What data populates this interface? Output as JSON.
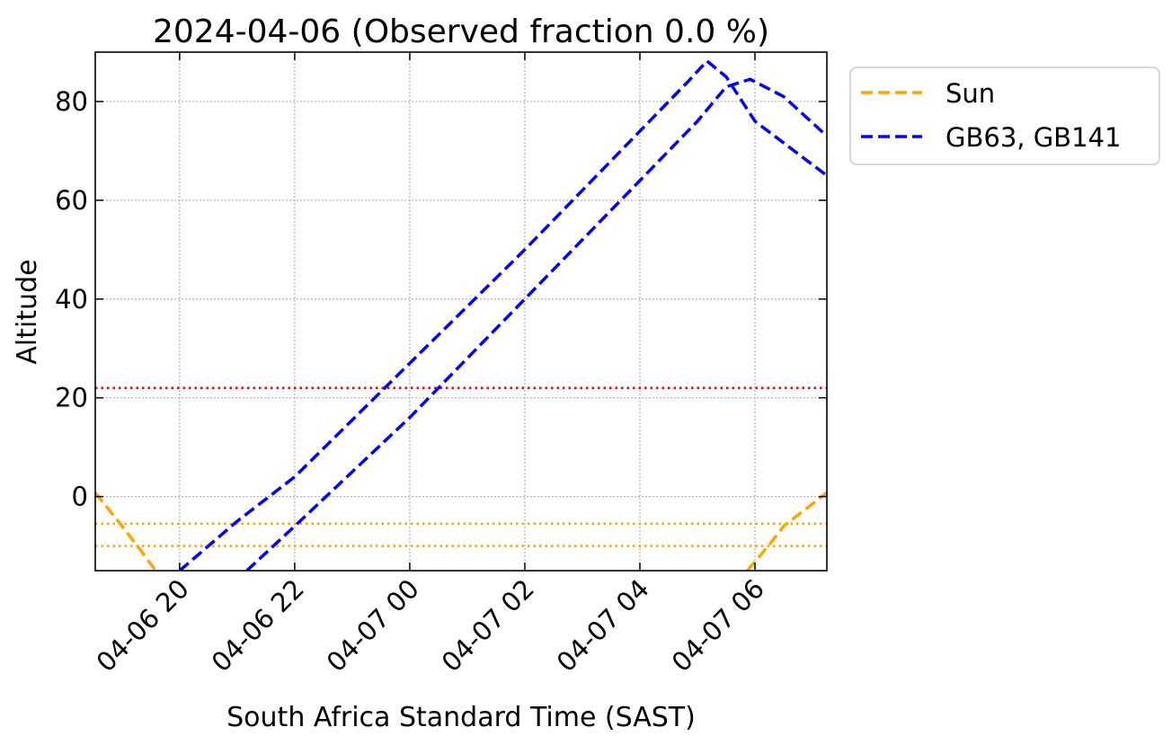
{
  "chart_data": {
    "type": "line",
    "title": "2024-04-06 (Observed fraction 0.0 %)",
    "xlabel": "South Africa Standard Time (SAST)",
    "ylabel": "Altitude",
    "x_ticks": [
      "04-06 20",
      "04-06 22",
      "04-07 00",
      "04-07 02",
      "04-07 04",
      "04-07 06"
    ],
    "y_ticks": [
      0,
      20,
      40,
      60,
      80
    ],
    "xlim": [
      "2024-04-06 18:32",
      "2024-04-07 07:15"
    ],
    "ylim": [
      -15,
      90
    ],
    "grid": true,
    "legend_position": "outside-top-right",
    "legend": [
      "Sun",
      "GB63, GB141"
    ],
    "series": [
      {
        "name": "Sun",
        "color": "#FFA500",
        "style": "dashed",
        "segments": [
          [
            [
              "2024-04-06 18:32",
              0.8
            ],
            [
              "2024-04-06 19:00",
              -6
            ],
            [
              "2024-04-06 19:16",
              -10
            ],
            [
              "2024-04-06 19:35",
              -15
            ]
          ],
          [
            [
              "2024-04-07 05:52",
              -15
            ],
            [
              "2024-04-07 06:14",
              -10
            ],
            [
              "2024-04-07 06:30",
              -6
            ],
            [
              "2024-04-07 07:15",
              0.8
            ]
          ]
        ]
      },
      {
        "name": "GB63, GB141",
        "color": "#0000FF",
        "style": "dashed",
        "segments": [
          [
            [
              "2024-04-06 20:00",
              -15
            ],
            [
              "2024-04-06 21:00",
              -5
            ],
            [
              "2024-04-06 22:00",
              4
            ],
            [
              "2024-04-07 00:00",
              27
            ],
            [
              "2024-04-07 02:00",
              50
            ],
            [
              "2024-04-07 04:00",
              74
            ],
            [
              "2024-04-07 04:50",
              84
            ],
            [
              "2024-04-07 05:10",
              88.2
            ],
            [
              "2024-04-07 05:30",
              85
            ],
            [
              "2024-04-07 06:00",
              76
            ],
            [
              "2024-04-07 07:15",
              65
            ]
          ],
          [
            [
              "2024-04-06 21:10",
              -15
            ],
            [
              "2024-04-06 22:00",
              -6
            ],
            [
              "2024-04-07 00:00",
              16
            ],
            [
              "2024-04-07 02:00",
              40
            ],
            [
              "2024-04-07 04:00",
              64
            ],
            [
              "2024-04-07 05:00",
              76
            ],
            [
              "2024-04-07 05:30",
              83
            ],
            [
              "2024-04-07 05:55",
              84.5
            ],
            [
              "2024-04-07 06:30",
              81
            ],
            [
              "2024-04-07 07:15",
              73
            ]
          ]
        ]
      }
    ],
    "reference_lines": [
      {
        "y": 22,
        "color": "#FF0000",
        "style": "dotted"
      },
      {
        "y": -5.5,
        "color": "#FFA500",
        "style": "dotted"
      },
      {
        "y": -10,
        "color": "#FFA500",
        "style": "dotted"
      }
    ]
  }
}
